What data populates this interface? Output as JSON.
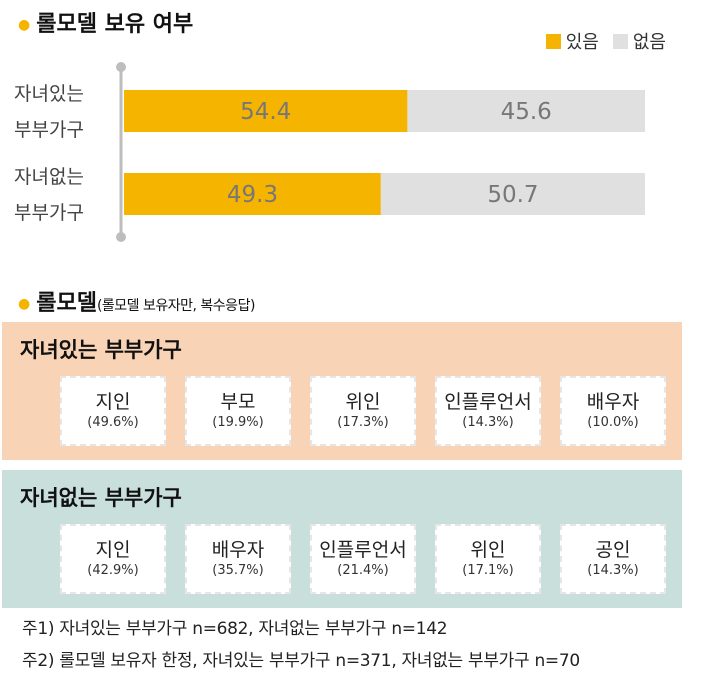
{
  "title1": "롤모델 보유 여부",
  "legend": {
    "have": "있음",
    "none": "없음",
    "have_color": "#f5b400",
    "none_color": "#e0e0e0"
  },
  "chart_data": {
    "type": "bar",
    "orientation": "horizontal",
    "stacked": true,
    "percent": true,
    "categories": [
      [
        "자녀있는",
        "부부가구"
      ],
      [
        "자녀없는",
        "부부가구"
      ]
    ],
    "series": [
      {
        "name": "있음",
        "values": [
          54.4,
          49.3
        ],
        "color": "#f5b400"
      },
      {
        "name": "없음",
        "values": [
          45.6,
          50.7
        ],
        "color": "#e0e0e0"
      }
    ],
    "xlim": [
      0,
      100
    ],
    "grid": false,
    "legend_position": "top-right"
  },
  "title2": "롤모델",
  "title2_sub": "(롤모델 보유자만, 복수응답)",
  "panels": [
    {
      "title": "자녀있는 부부가구",
      "items": [
        {
          "name": "지인",
          "pct": "(49.6%)"
        },
        {
          "name": "부모",
          "pct": "(19.9%)"
        },
        {
          "name": "위인",
          "pct": "(17.3%)"
        },
        {
          "name": "인플루언서",
          "pct": "(14.3%)"
        },
        {
          "name": "배우자",
          "pct": "(10.0%)"
        }
      ]
    },
    {
      "title": "자녀없는 부부가구",
      "items": [
        {
          "name": "지인",
          "pct": "(42.9%)"
        },
        {
          "name": "배우자",
          "pct": "(35.7%)"
        },
        {
          "name": "인플루언서",
          "pct": "(21.4%)"
        },
        {
          "name": "위인",
          "pct": "(17.1%)"
        },
        {
          "name": "공인",
          "pct": "(14.3%)"
        }
      ]
    }
  ],
  "notes": [
    "주1) 자녀있는 부부가구 n=682, 자녀없는 부부가구 n=142",
    "주2) 롤모델 보유자 한정, 자녀있는 부부가구 n=371, 자녀없는 부부가구 n=70"
  ]
}
